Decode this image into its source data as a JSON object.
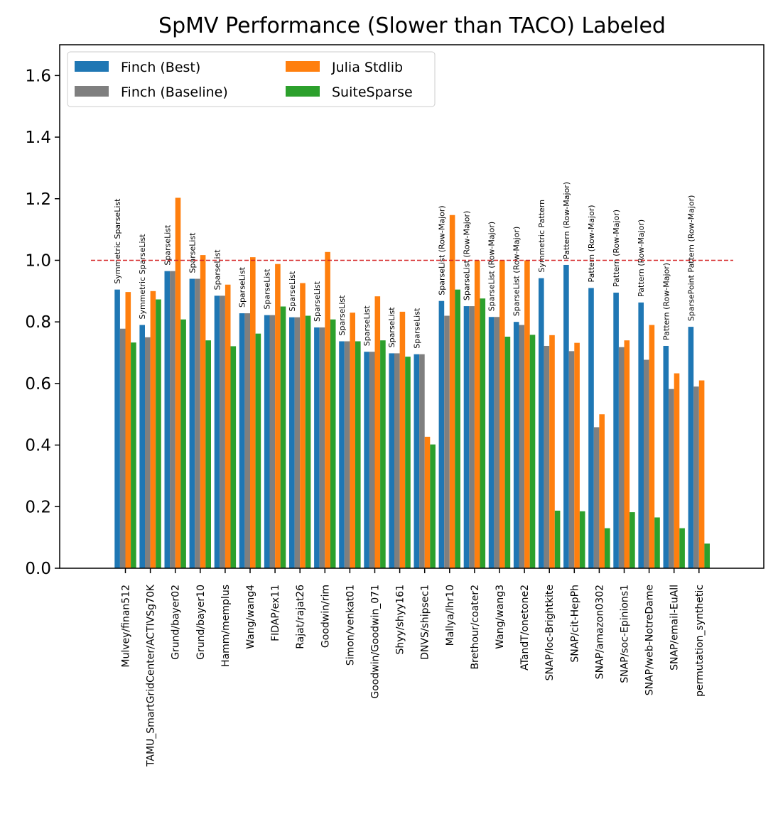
{
  "chart_data": {
    "type": "bar",
    "title": "SpMV Performance (Slower than TACO) Labeled",
    "xlabel": "",
    "ylabel": "",
    "ylim": [
      0,
      1.7
    ],
    "yticks": [
      "0.0",
      "0.2",
      "0.4",
      "0.6",
      "0.8",
      "1.0",
      "1.2",
      "1.4",
      "1.6"
    ],
    "reference_line": {
      "value": 1.0,
      "color": "#d62728",
      "style": "dashed"
    },
    "grid": false,
    "legend_placement": "top-left",
    "categories": [
      "Mulvey/finan512",
      "TAMU_SmartGridCenter/ACTIVSg70K",
      "Grund/bayer02",
      "Grund/bayer10",
      "Hamm/memplus",
      "Wang/wang4",
      "FIDAP/ex11",
      "Rajat/rajat26",
      "Goodwin/rim",
      "Simon/venkat01",
      "Goodwin/Goodwin_071",
      "Shyy/shyy161",
      "DNVS/shipsec1",
      "Mallya/lhr10",
      "Brethour/coater2",
      "Wang/wang3",
      "ATandT/onetone2",
      "SNAP/loc-Brightkite",
      "SNAP/cit-HepPh",
      "SNAP/amazon0302",
      "SNAP/soc-Epinions1",
      "SNAP/web-NotreDame",
      "SNAP/email-EuAll",
      "permutation_synthetic"
    ],
    "bar_labels": [
      "Symmetric SparseList",
      "Symmetric SparseList",
      "SparseList",
      "SparseList",
      "SparseList",
      "SparseList",
      "SparseList",
      "SparseList",
      "SparseList",
      "SparseList",
      "SparseList",
      "SparseList",
      "SparseList",
      "SparseList (Row-Major)",
      "SparseList (Row-Major)",
      "SparseList (Row-Major)",
      "SparseList (Row-Major)",
      "Symmetric Pattern",
      "Pattern (Row-Major)",
      "Pattern (Row-Major)",
      "Pattern (Row-Major)",
      "Pattern (Row-Major)",
      "Pattern (Row-Major)",
      "SparsePoint Pattern (Row-Major)"
    ],
    "series": [
      {
        "name": "Finch (Best)",
        "color": "#1f77b4",
        "values": [
          0.905,
          0.79,
          0.965,
          0.94,
          0.885,
          0.828,
          0.822,
          0.815,
          0.782,
          0.737,
          0.703,
          0.698,
          0.695,
          0.868,
          0.851,
          0.816,
          0.8,
          0.942,
          0.985,
          0.91,
          0.895,
          0.863,
          0.722,
          0.784
        ]
      },
      {
        "name": "Finch (Baseline)",
        "color": "#7f7f7f",
        "values": [
          0.778,
          0.75,
          0.965,
          0.94,
          0.885,
          0.828,
          0.822,
          0.815,
          0.782,
          0.737,
          0.703,
          0.698,
          0.695,
          0.82,
          0.851,
          0.816,
          0.79,
          0.722,
          0.705,
          0.458,
          0.718,
          0.677,
          0.582,
          0.59
        ]
      },
      {
        "name": "Julia Stdlib",
        "color": "#ff7f0e",
        "values": [
          0.897,
          0.9,
          1.203,
          1.017,
          0.921,
          1.01,
          0.988,
          0.926,
          1.027,
          0.83,
          0.883,
          0.833,
          0.427,
          1.147,
          1.0,
          1.0,
          1.0,
          0.757,
          0.732,
          0.5,
          0.74,
          0.79,
          0.633,
          0.61
        ]
      },
      {
        "name": "SuiteSparse",
        "color": "#2ca02c",
        "values": [
          0.733,
          0.873,
          0.808,
          0.74,
          0.721,
          0.762,
          0.85,
          0.82,
          0.808,
          0.737,
          0.74,
          0.687,
          0.402,
          0.905,
          0.876,
          0.752,
          0.758,
          0.187,
          0.185,
          0.13,
          0.182,
          0.165,
          0.13,
          0.08
        ]
      }
    ]
  }
}
